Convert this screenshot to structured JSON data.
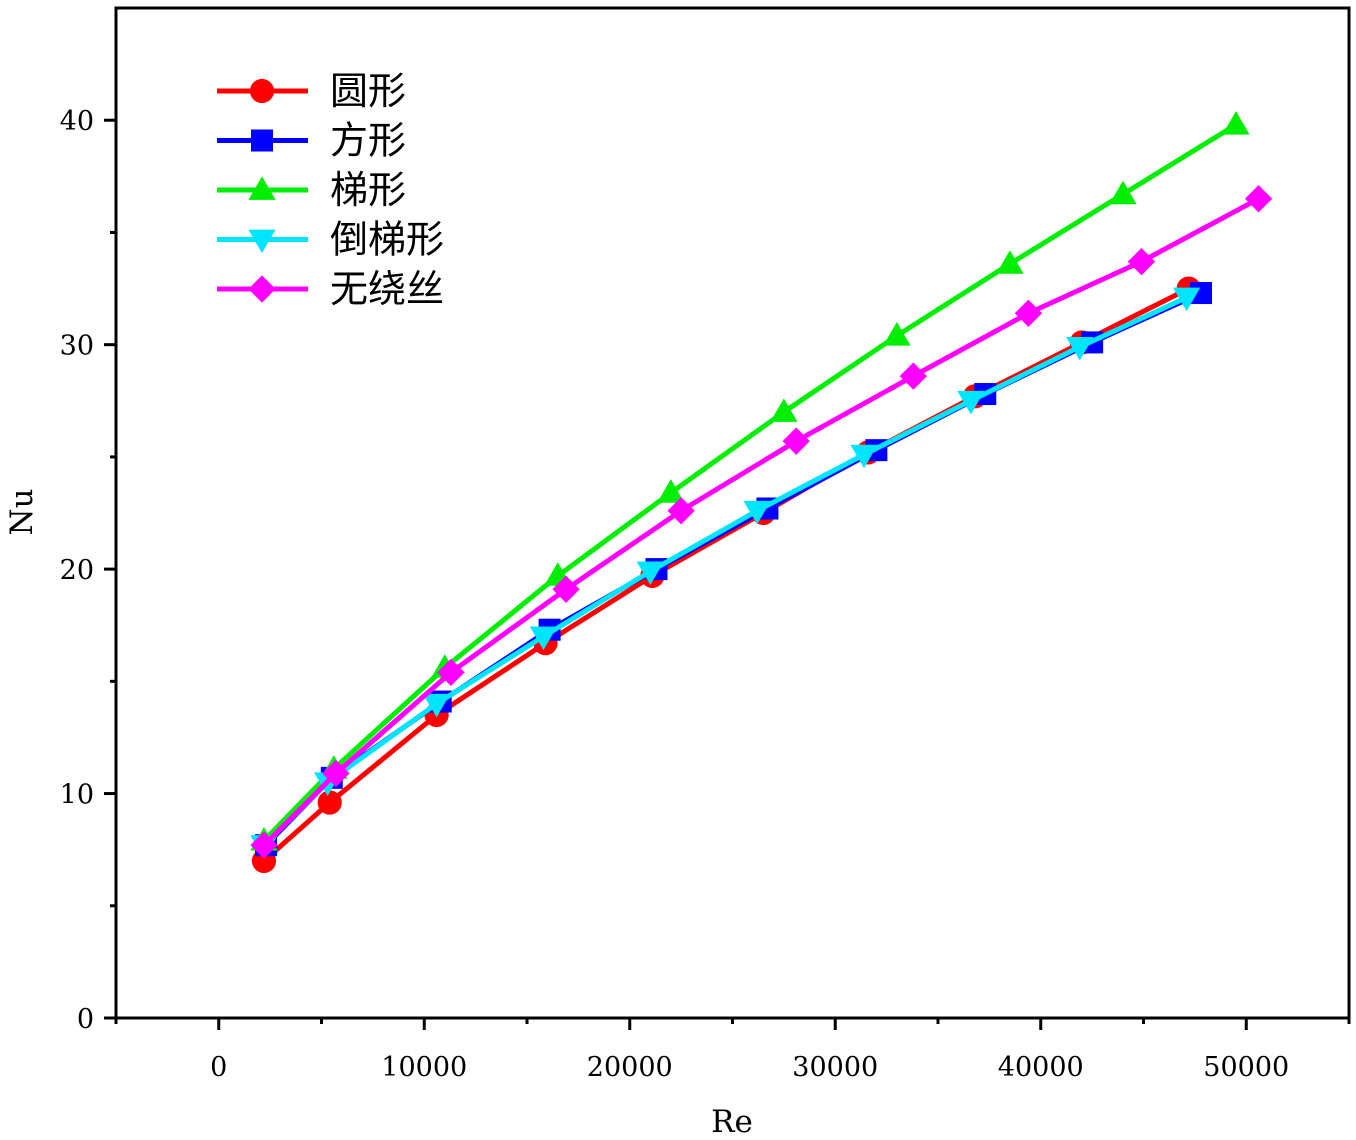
{
  "chart_data": {
    "type": "line",
    "xlabel": "Re",
    "ylabel": "Nu",
    "xlim": [
      -5000,
      55000
    ],
    "ylim": [
      0,
      45
    ],
    "x_ticks": [
      0,
      10000,
      20000,
      30000,
      40000,
      50000
    ],
    "y_ticks": [
      0,
      10,
      20,
      30,
      40
    ],
    "x_tick_labels": [
      "0",
      "10000",
      "20000",
      "30000",
      "40000",
      "50000"
    ],
    "y_tick_labels": [
      "0",
      "10",
      "20",
      "30",
      "40"
    ],
    "legend_position": "top-left",
    "grid": false,
    "series": [
      {
        "name": "圆形",
        "color": "#ff0000",
        "marker": "circle",
        "x": [
          2200,
          5400,
          10600,
          15900,
          21100,
          26500,
          31600,
          36800,
          42000,
          47200
        ],
        "y": [
          7.0,
          9.6,
          13.5,
          16.7,
          19.7,
          22.5,
          25.2,
          27.7,
          30.1,
          32.5
        ]
      },
      {
        "name": "方形",
        "color": "#0000ff",
        "marker": "square",
        "x": [
          2300,
          5500,
          10800,
          16100,
          21300,
          26700,
          32000,
          37300,
          42500,
          47800
        ],
        "y": [
          7.7,
          10.7,
          14.1,
          17.3,
          20.0,
          22.7,
          25.3,
          27.8,
          30.1,
          32.3
        ]
      },
      {
        "name": "梯形",
        "color": "#00ee00",
        "marker": "triangle-up",
        "x": [
          2200,
          5600,
          11000,
          16500,
          22000,
          27500,
          33000,
          38500,
          44000,
          49500
        ],
        "y": [
          7.9,
          11.1,
          15.6,
          19.7,
          23.4,
          27.0,
          30.4,
          33.6,
          36.7,
          39.8
        ]
      },
      {
        "name": "倒梯形",
        "color": "#00e5ff",
        "marker": "triangle-down",
        "x": [
          2200,
          5300,
          10600,
          15800,
          21000,
          26200,
          31400,
          36600,
          41900,
          47100
        ],
        "y": [
          7.7,
          10.5,
          14.0,
          17.0,
          19.9,
          22.6,
          25.1,
          27.5,
          29.9,
          32.1
        ]
      },
      {
        "name": "无绕丝",
        "color": "#ff00ff",
        "marker": "diamond",
        "x": [
          2200,
          5700,
          11300,
          16900,
          22500,
          28100,
          33800,
          39400,
          44900,
          50600
        ],
        "y": [
          7.7,
          10.9,
          15.4,
          19.1,
          22.6,
          25.7,
          28.6,
          31.4,
          33.7,
          36.5
        ]
      }
    ]
  }
}
